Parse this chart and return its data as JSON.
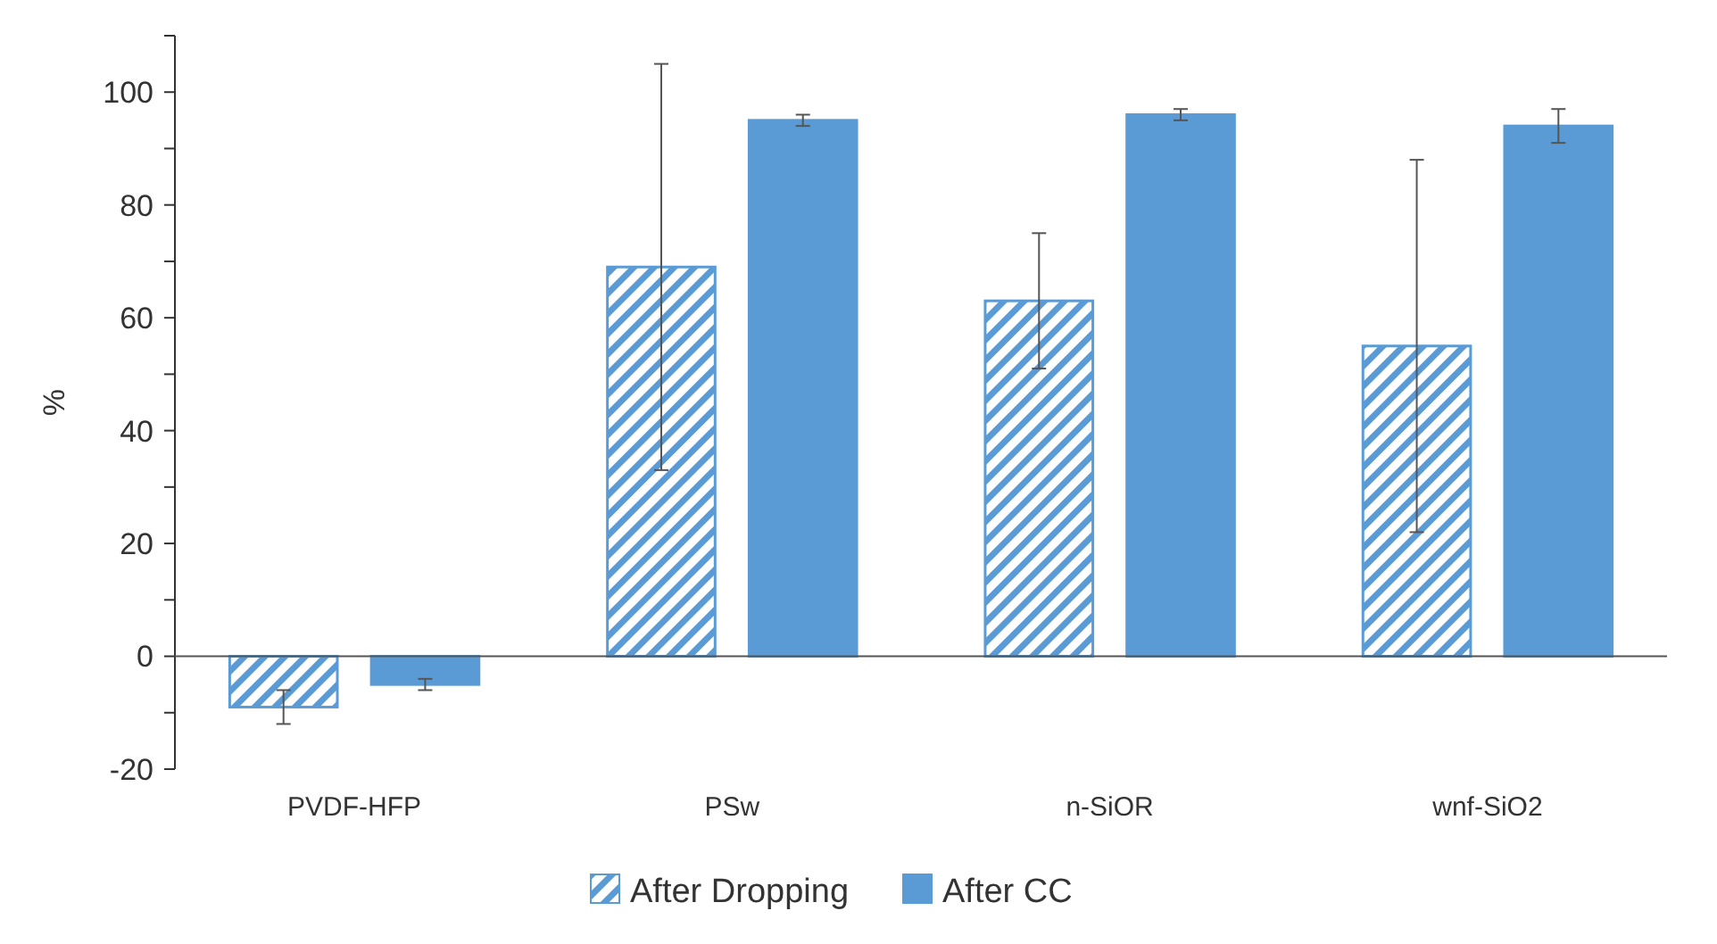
{
  "chart_data": {
    "type": "bar",
    "ylabel": "%",
    "categories": [
      "PVDF-HFP",
      "PSw",
      "n-SiOR",
      "wnf-SiO2"
    ],
    "series": [
      {
        "name": "After Dropping",
        "color": "#5b9bd5",
        "values": [
          -9,
          69,
          63,
          55
        ],
        "errors": [
          3,
          36,
          12,
          33
        ]
      },
      {
        "name": "After CC",
        "color": "#5b9bd5",
        "values": [
          -5,
          95,
          96,
          94
        ],
        "errors": [
          1,
          1,
          1,
          3
        ]
      }
    ],
    "ylim": [
      -20,
      110
    ],
    "yticks": [
      -20,
      {
        "value": -10,
        "label": null
      },
      0,
      {
        "value": 10,
        "label": null
      },
      20,
      {
        "value": 30,
        "label": null
      },
      40,
      {
        "value": 50,
        "label": null
      },
      60,
      {
        "value": 70,
        "label": null
      },
      80,
      {
        "value": 90,
        "label": null
      },
      100,
      {
        "value": 110,
        "label": null
      }
    ],
    "legend": "bottom"
  }
}
